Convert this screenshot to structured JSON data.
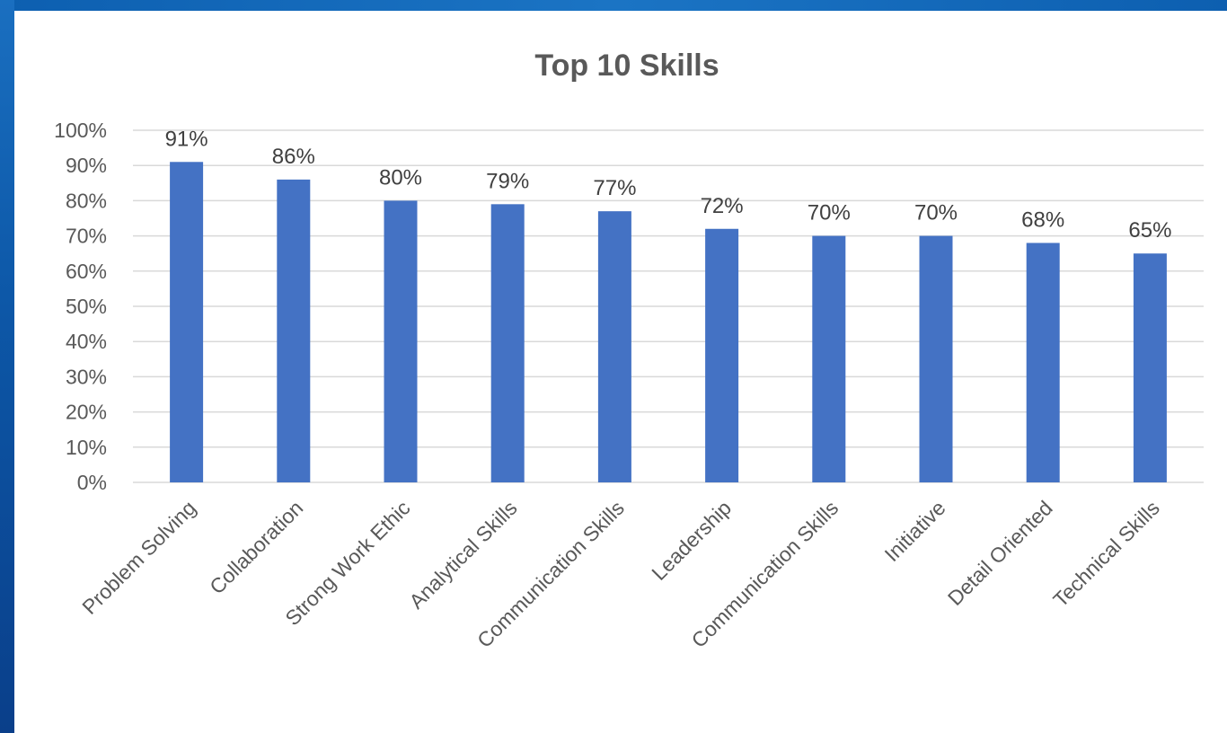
{
  "chart_data": {
    "type": "bar",
    "title": "Top 10 Skills",
    "categories": [
      "Problem Solving",
      "Collaboration",
      "Strong Work Ethic",
      "Analytical Skills",
      "Communication Skills",
      "Leadership",
      "Communication Skills",
      "Initiative",
      "Detail Oriented",
      "Technical Skills"
    ],
    "values": [
      91,
      86,
      80,
      79,
      77,
      72,
      70,
      70,
      68,
      65
    ],
    "data_labels": [
      "91%",
      "86%",
      "80%",
      "79%",
      "77%",
      "72%",
      "70%",
      "70%",
      "68%",
      "65%"
    ],
    "y_ticks": [
      "0%",
      "10%",
      "20%",
      "30%",
      "40%",
      "50%",
      "60%",
      "70%",
      "80%",
      "90%",
      "100%"
    ],
    "ylim": [
      0,
      100
    ],
    "y_unit": "%",
    "grid": true,
    "legend": "none",
    "colors": {
      "bar": "#4472c4",
      "grid": "#d9d9d9",
      "text": "#595959"
    }
  }
}
